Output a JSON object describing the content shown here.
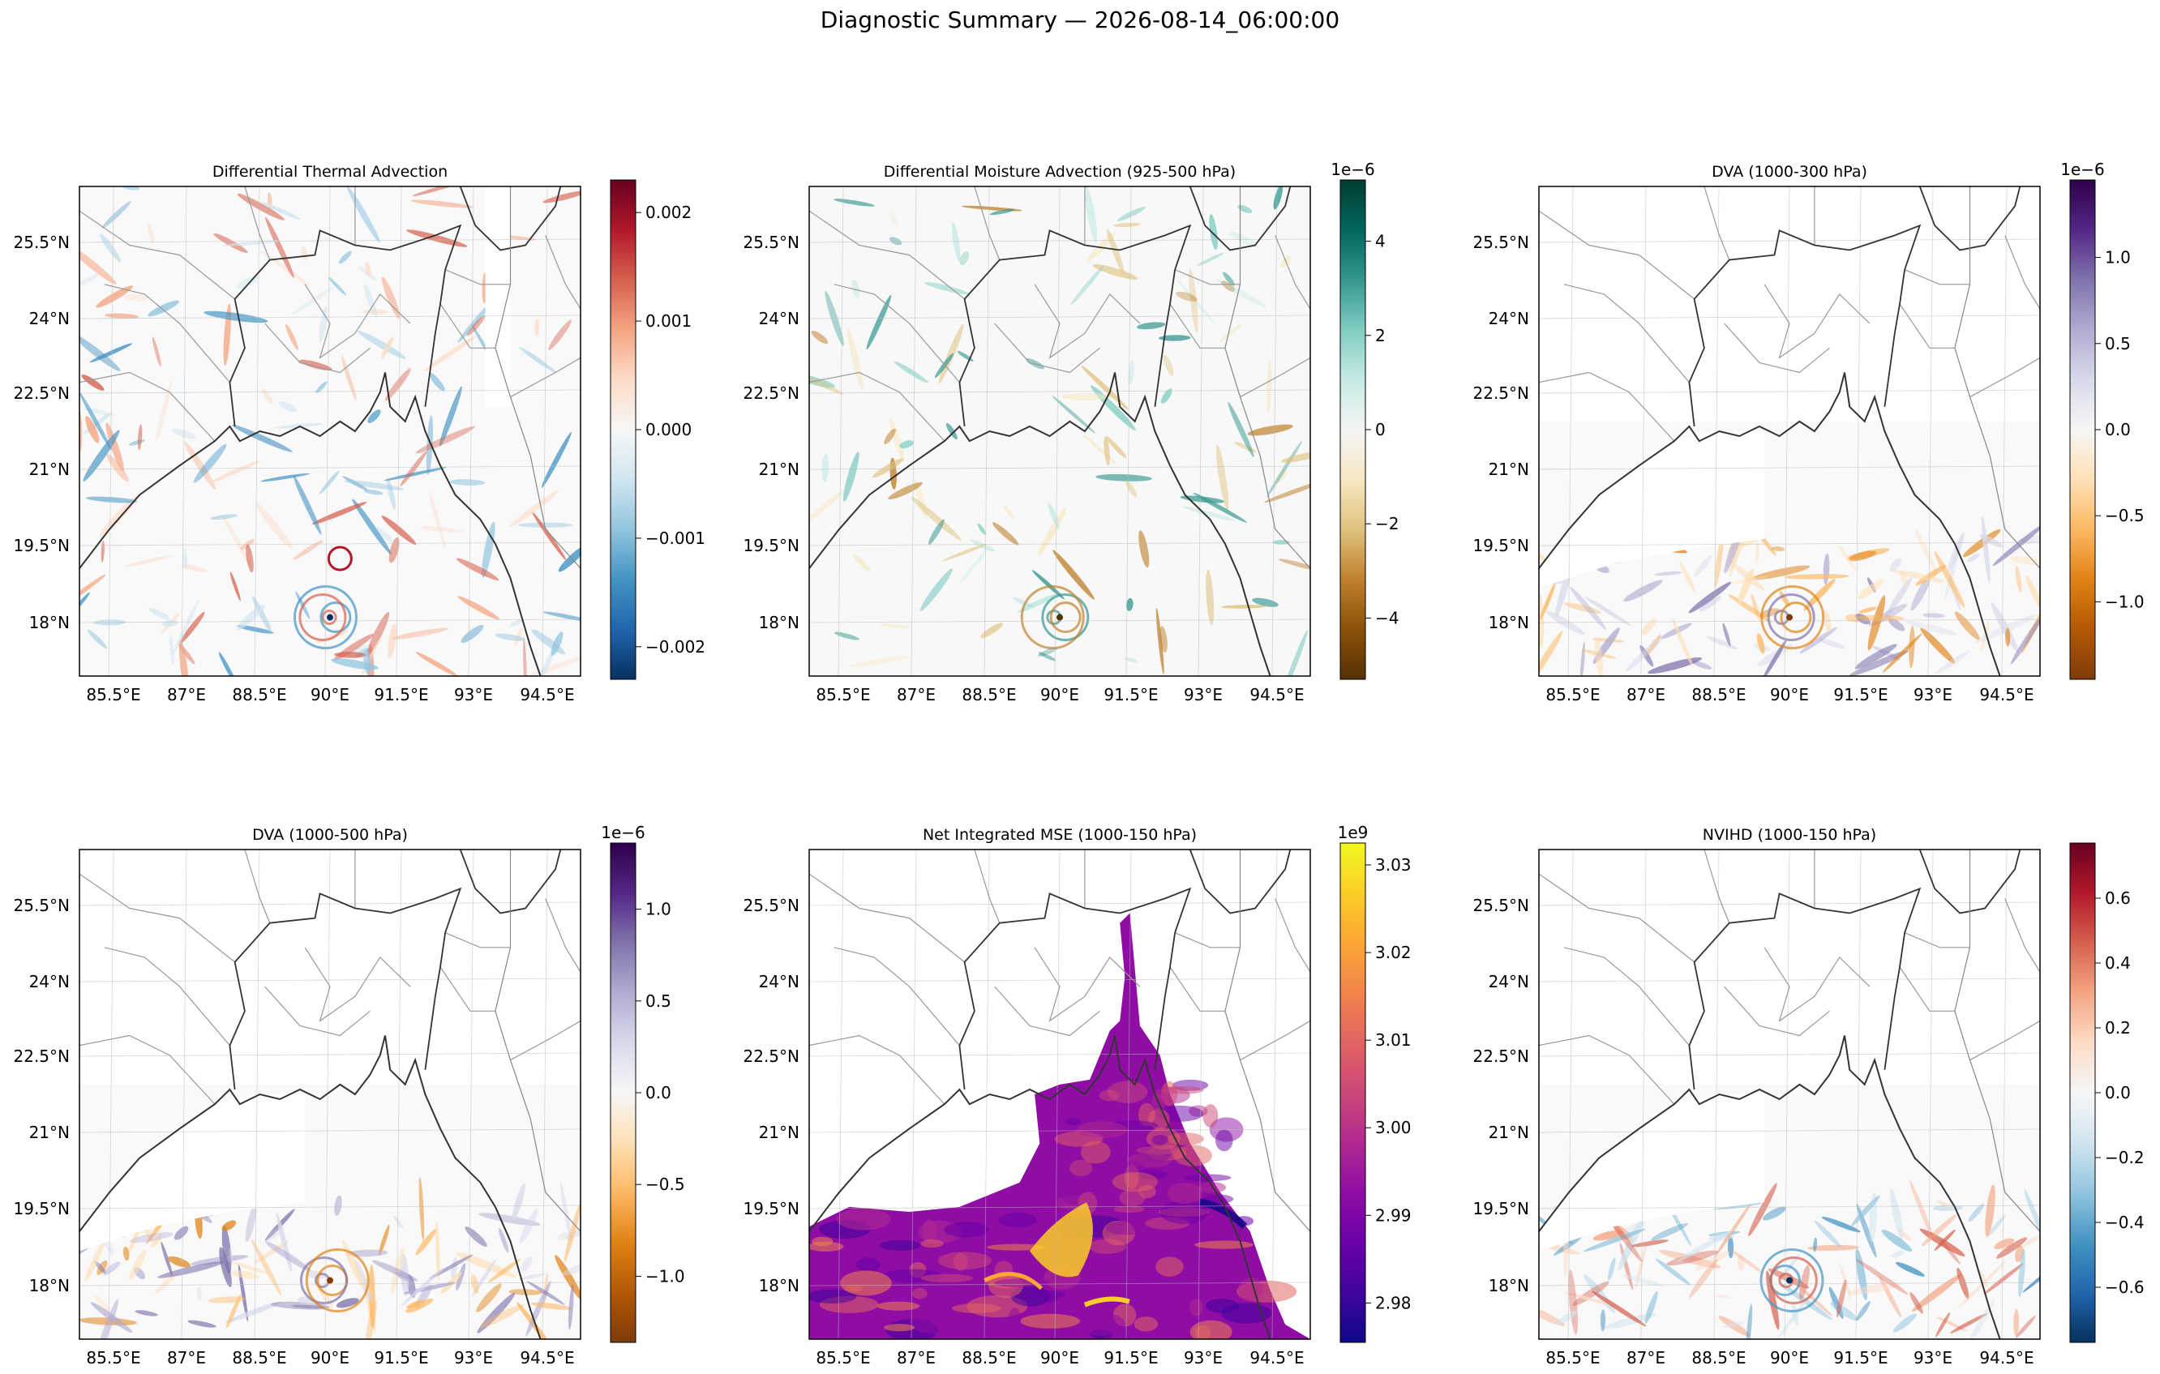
{
  "figure": {
    "title": "Diagnostic Summary — 2026-08-14_06:00:00"
  },
  "map_axes": {
    "lon_ticks": [
      "85.5°E",
      "87°E",
      "88.5°E",
      "90°E",
      "91.5°E",
      "93°E",
      "94.5°E"
    ],
    "lat_ticks": [
      "25.5°N",
      "24°N",
      "22.5°N",
      "21°N",
      "19.5°N",
      "18°N"
    ]
  },
  "chart_data": [
    {
      "type": "heatmap",
      "title": "Differential Thermal Advection",
      "colormap": "RdBu_r",
      "colorbar_exponent": "",
      "colorbar_ticks": [
        "0.002",
        "0.001",
        "0.000",
        "−0.001",
        "−0.002"
      ],
      "colorbar_range": [
        -0.0023,
        0.0023
      ],
      "lon_range": [
        84.7,
        95.0
      ],
      "lat_range": [
        17.0,
        26.6
      ]
    },
    {
      "type": "heatmap",
      "title": "Differential Moisture Advection (925-500 hPa)",
      "colormap": "BrBG",
      "colorbar_exponent": "1e−6",
      "colorbar_ticks": [
        "4",
        "2",
        "0",
        "−2",
        "−4"
      ],
      "colorbar_range": [
        -5.3,
        5.3
      ],
      "lon_range": [
        84.7,
        95.0
      ],
      "lat_range": [
        17.0,
        26.6
      ]
    },
    {
      "type": "heatmap",
      "title": "DVA (1000-300 hPa)",
      "colormap": "PuOr",
      "colorbar_exponent": "1e−6",
      "colorbar_ticks": [
        "1.0",
        "0.5",
        "0.0",
        "−0.5",
        "−1.0"
      ],
      "colorbar_range": [
        -1.45,
        1.45
      ],
      "lon_range": [
        84.7,
        95.0
      ],
      "lat_range": [
        17.0,
        26.6
      ]
    },
    {
      "type": "heatmap",
      "title": "DVA (1000-500 hPa)",
      "colormap": "PuOr",
      "colorbar_exponent": "1e−6",
      "colorbar_ticks": [
        "1.0",
        "0.5",
        "0.0",
        "−0.5",
        "−1.0"
      ],
      "colorbar_range": [
        -1.36,
        1.36
      ],
      "lon_range": [
        84.7,
        95.0
      ],
      "lat_range": [
        17.0,
        26.6
      ]
    },
    {
      "type": "heatmap",
      "title": "Net Integrated MSE (1000-150 hPa)",
      "colormap": "plasma",
      "colorbar_exponent": "1e9",
      "colorbar_ticks": [
        "3.03",
        "3.02",
        "3.01",
        "3.00",
        "2.99",
        "2.98"
      ],
      "colorbar_range": [
        2.9755,
        3.0325
      ],
      "lon_range": [
        84.7,
        95.0
      ],
      "lat_range": [
        17.0,
        26.6
      ]
    },
    {
      "type": "heatmap",
      "title": "NVIHD (1000-150 hPa)",
      "colormap": "RdBu_r",
      "colorbar_exponent": "",
      "colorbar_ticks": [
        "0.6",
        "0.4",
        "0.2",
        "0.0",
        "−0.2",
        "−0.4",
        "−0.6"
      ],
      "colorbar_range": [
        -0.77,
        0.77
      ],
      "lon_range": [
        84.7,
        95.0
      ],
      "lat_range": [
        17.0,
        26.6
      ]
    }
  ]
}
